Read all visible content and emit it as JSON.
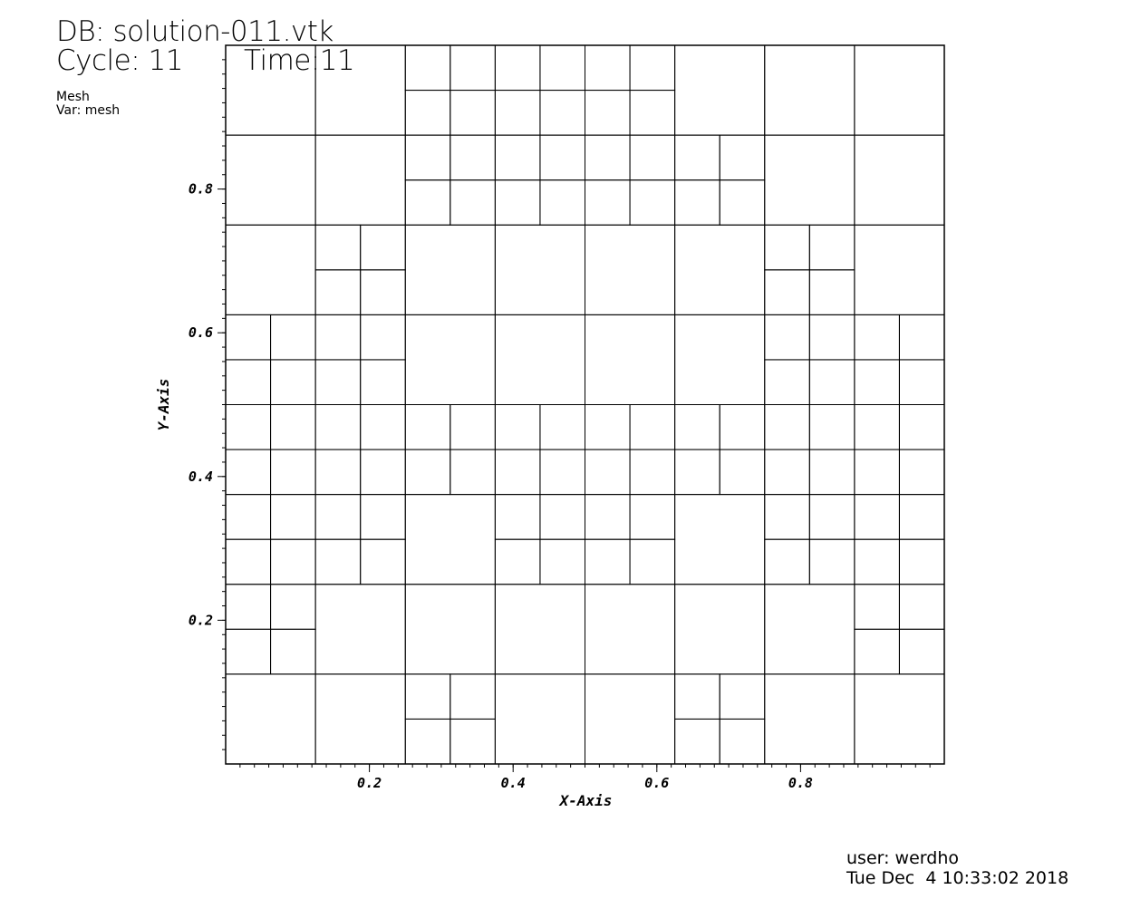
{
  "header": {
    "db": "DB: solution-011.vtk",
    "cycle": "Cycle: 11",
    "time": "Time:11",
    "plot_type": "Mesh",
    "variable": "Var: mesh"
  },
  "footer": {
    "user": "user: werdho",
    "date": "Tue Dec  4 10:33:02 2018"
  },
  "chart_data": {
    "type": "mesh",
    "xlabel": "X-Axis",
    "ylabel": "Y-Axis",
    "xlim": [
      0,
      1
    ],
    "ylim": [
      0,
      1
    ],
    "x_ticks": [
      {
        "value": 0.2,
        "label": "0.2"
      },
      {
        "value": 0.4,
        "label": "0.4"
      },
      {
        "value": 0.6,
        "label": "0.6"
      },
      {
        "value": 0.8,
        "label": "0.8"
      }
    ],
    "y_ticks": [
      {
        "value": 0.2,
        "label": "0.2"
      },
      {
        "value": 0.4,
        "label": "0.4"
      },
      {
        "value": 0.6,
        "label": "0.6"
      },
      {
        "value": 0.8,
        "label": "0.8"
      }
    ],
    "minor_tick_step": 0.02,
    "cells": [
      [
        0,
        0,
        0.125
      ],
      [
        0.125,
        0,
        0.125
      ],
      [
        0.25,
        0,
        0.0625
      ],
      [
        0.3125,
        0,
        0.0625
      ],
      [
        0.25,
        0.0625,
        0.0625
      ],
      [
        0.3125,
        0.0625,
        0.0625
      ],
      [
        0.375,
        0,
        0.125
      ],
      [
        0.5,
        0,
        0.125
      ],
      [
        0.625,
        0,
        0.0625
      ],
      [
        0.6875,
        0,
        0.0625
      ],
      [
        0.625,
        0.0625,
        0.0625
      ],
      [
        0.6875,
        0.0625,
        0.0625
      ],
      [
        0.75,
        0,
        0.125
      ],
      [
        0.875,
        0,
        0.125
      ],
      [
        0,
        0.125,
        0.0625
      ],
      [
        0.0625,
        0.125,
        0.0625
      ],
      [
        0,
        0.1875,
        0.0625
      ],
      [
        0.0625,
        0.1875,
        0.0625
      ],
      [
        0.125,
        0.125,
        0.125
      ],
      [
        0.25,
        0.125,
        0.125
      ],
      [
        0.375,
        0.125,
        0.125
      ],
      [
        0.5,
        0.125,
        0.125
      ],
      [
        0.625,
        0.125,
        0.125
      ],
      [
        0.75,
        0.125,
        0.125
      ],
      [
        0.875,
        0.125,
        0.0625
      ],
      [
        0.9375,
        0.125,
        0.0625
      ],
      [
        0.875,
        0.1875,
        0.0625
      ],
      [
        0.9375,
        0.1875,
        0.0625
      ],
      [
        0,
        0.25,
        0.0625
      ],
      [
        0.0625,
        0.25,
        0.0625
      ],
      [
        0,
        0.3125,
        0.0625
      ],
      [
        0.0625,
        0.3125,
        0.0625
      ],
      [
        0.125,
        0.25,
        0.0625
      ],
      [
        0.1875,
        0.25,
        0.0625
      ],
      [
        0.125,
        0.3125,
        0.0625
      ],
      [
        0.1875,
        0.3125,
        0.0625
      ],
      [
        0.25,
        0.25,
        0.125
      ],
      [
        0.375,
        0.25,
        0.0625
      ],
      [
        0.4375,
        0.25,
        0.0625
      ],
      [
        0.375,
        0.3125,
        0.0625
      ],
      [
        0.4375,
        0.3125,
        0.0625
      ],
      [
        0.5,
        0.25,
        0.0625
      ],
      [
        0.5625,
        0.25,
        0.0625
      ],
      [
        0.5,
        0.3125,
        0.0625
      ],
      [
        0.5625,
        0.3125,
        0.0625
      ],
      [
        0.625,
        0.25,
        0.125
      ],
      [
        0.75,
        0.25,
        0.0625
      ],
      [
        0.8125,
        0.25,
        0.0625
      ],
      [
        0.75,
        0.3125,
        0.0625
      ],
      [
        0.8125,
        0.3125,
        0.0625
      ],
      [
        0.875,
        0.25,
        0.0625
      ],
      [
        0.9375,
        0.25,
        0.0625
      ],
      [
        0.875,
        0.3125,
        0.0625
      ],
      [
        0.9375,
        0.3125,
        0.0625
      ],
      [
        0,
        0.375,
        0.0625
      ],
      [
        0.0625,
        0.375,
        0.0625
      ],
      [
        0,
        0.4375,
        0.0625
      ],
      [
        0.0625,
        0.4375,
        0.0625
      ],
      [
        0.125,
        0.375,
        0.0625
      ],
      [
        0.1875,
        0.375,
        0.0625
      ],
      [
        0.125,
        0.4375,
        0.0625
      ],
      [
        0.1875,
        0.4375,
        0.0625
      ],
      [
        0.25,
        0.375,
        0.0625
      ],
      [
        0.3125,
        0.375,
        0.0625
      ],
      [
        0.25,
        0.4375,
        0.0625
      ],
      [
        0.3125,
        0.4375,
        0.0625
      ],
      [
        0.375,
        0.375,
        0.0625
      ],
      [
        0.4375,
        0.375,
        0.0625
      ],
      [
        0.375,
        0.4375,
        0.0625
      ],
      [
        0.4375,
        0.4375,
        0.0625
      ],
      [
        0.5,
        0.375,
        0.0625
      ],
      [
        0.5625,
        0.375,
        0.0625
      ],
      [
        0.5,
        0.4375,
        0.0625
      ],
      [
        0.5625,
        0.4375,
        0.0625
      ],
      [
        0.625,
        0.375,
        0.0625
      ],
      [
        0.6875,
        0.375,
        0.0625
      ],
      [
        0.625,
        0.4375,
        0.0625
      ],
      [
        0.6875,
        0.4375,
        0.0625
      ],
      [
        0.75,
        0.375,
        0.0625
      ],
      [
        0.8125,
        0.375,
        0.0625
      ],
      [
        0.75,
        0.4375,
        0.0625
      ],
      [
        0.8125,
        0.4375,
        0.0625
      ],
      [
        0.875,
        0.375,
        0.0625
      ],
      [
        0.9375,
        0.375,
        0.0625
      ],
      [
        0.875,
        0.4375,
        0.0625
      ],
      [
        0.9375,
        0.4375,
        0.0625
      ],
      [
        0,
        0.5,
        0.0625
      ],
      [
        0.0625,
        0.5,
        0.0625
      ],
      [
        0,
        0.5625,
        0.0625
      ],
      [
        0.0625,
        0.5625,
        0.0625
      ],
      [
        0.125,
        0.5,
        0.0625
      ],
      [
        0.1875,
        0.5,
        0.0625
      ],
      [
        0.125,
        0.5625,
        0.0625
      ],
      [
        0.1875,
        0.5625,
        0.0625
      ],
      [
        0.25,
        0.5,
        0.125
      ],
      [
        0.375,
        0.5,
        0.125
      ],
      [
        0.5,
        0.5,
        0.125
      ],
      [
        0.625,
        0.5,
        0.125
      ],
      [
        0.75,
        0.5,
        0.0625
      ],
      [
        0.8125,
        0.5,
        0.0625
      ],
      [
        0.75,
        0.5625,
        0.0625
      ],
      [
        0.8125,
        0.5625,
        0.0625
      ],
      [
        0.875,
        0.5,
        0.0625
      ],
      [
        0.9375,
        0.5,
        0.0625
      ],
      [
        0.875,
        0.5625,
        0.0625
      ],
      [
        0.9375,
        0.5625,
        0.0625
      ],
      [
        0,
        0.625,
        0.125
      ],
      [
        0.125,
        0.625,
        0.0625
      ],
      [
        0.1875,
        0.625,
        0.0625
      ],
      [
        0.125,
        0.6875,
        0.0625
      ],
      [
        0.1875,
        0.6875,
        0.0625
      ],
      [
        0.25,
        0.625,
        0.125
      ],
      [
        0.375,
        0.625,
        0.125
      ],
      [
        0.5,
        0.625,
        0.125
      ],
      [
        0.625,
        0.625,
        0.125
      ],
      [
        0.75,
        0.625,
        0.0625
      ],
      [
        0.8125,
        0.625,
        0.0625
      ],
      [
        0.75,
        0.6875,
        0.0625
      ],
      [
        0.8125,
        0.6875,
        0.0625
      ],
      [
        0.875,
        0.625,
        0.125
      ],
      [
        0,
        0.75,
        0.125
      ],
      [
        0.125,
        0.75,
        0.125
      ],
      [
        0.25,
        0.75,
        0.0625
      ],
      [
        0.3125,
        0.75,
        0.0625
      ],
      [
        0.25,
        0.8125,
        0.0625
      ],
      [
        0.3125,
        0.8125,
        0.0625
      ],
      [
        0.375,
        0.75,
        0.0625
      ],
      [
        0.4375,
        0.75,
        0.0625
      ],
      [
        0.375,
        0.8125,
        0.0625
      ],
      [
        0.4375,
        0.8125,
        0.0625
      ],
      [
        0.5,
        0.75,
        0.0625
      ],
      [
        0.5625,
        0.75,
        0.0625
      ],
      [
        0.5,
        0.8125,
        0.0625
      ],
      [
        0.5625,
        0.8125,
        0.0625
      ],
      [
        0.625,
        0.75,
        0.0625
      ],
      [
        0.6875,
        0.75,
        0.0625
      ],
      [
        0.625,
        0.8125,
        0.0625
      ],
      [
        0.6875,
        0.8125,
        0.0625
      ],
      [
        0.75,
        0.75,
        0.125
      ],
      [
        0.875,
        0.75,
        0.125
      ],
      [
        0,
        0.875,
        0.125
      ],
      [
        0.125,
        0.875,
        0.125
      ],
      [
        0.25,
        0.875,
        0.0625
      ],
      [
        0.3125,
        0.875,
        0.0625
      ],
      [
        0.25,
        0.9375,
        0.0625
      ],
      [
        0.3125,
        0.9375,
        0.0625
      ],
      [
        0.375,
        0.875,
        0.0625
      ],
      [
        0.4375,
        0.875,
        0.0625
      ],
      [
        0.375,
        0.9375,
        0.0625
      ],
      [
        0.4375,
        0.9375,
        0.0625
      ],
      [
        0.5,
        0.875,
        0.0625
      ],
      [
        0.5625,
        0.875,
        0.0625
      ],
      [
        0.5,
        0.9375,
        0.0625
      ],
      [
        0.5625,
        0.9375,
        0.0625
      ],
      [
        0.625,
        0.875,
        0.125
      ],
      [
        0.75,
        0.875,
        0.125
      ],
      [
        0.875,
        0.875,
        0.125
      ]
    ]
  }
}
